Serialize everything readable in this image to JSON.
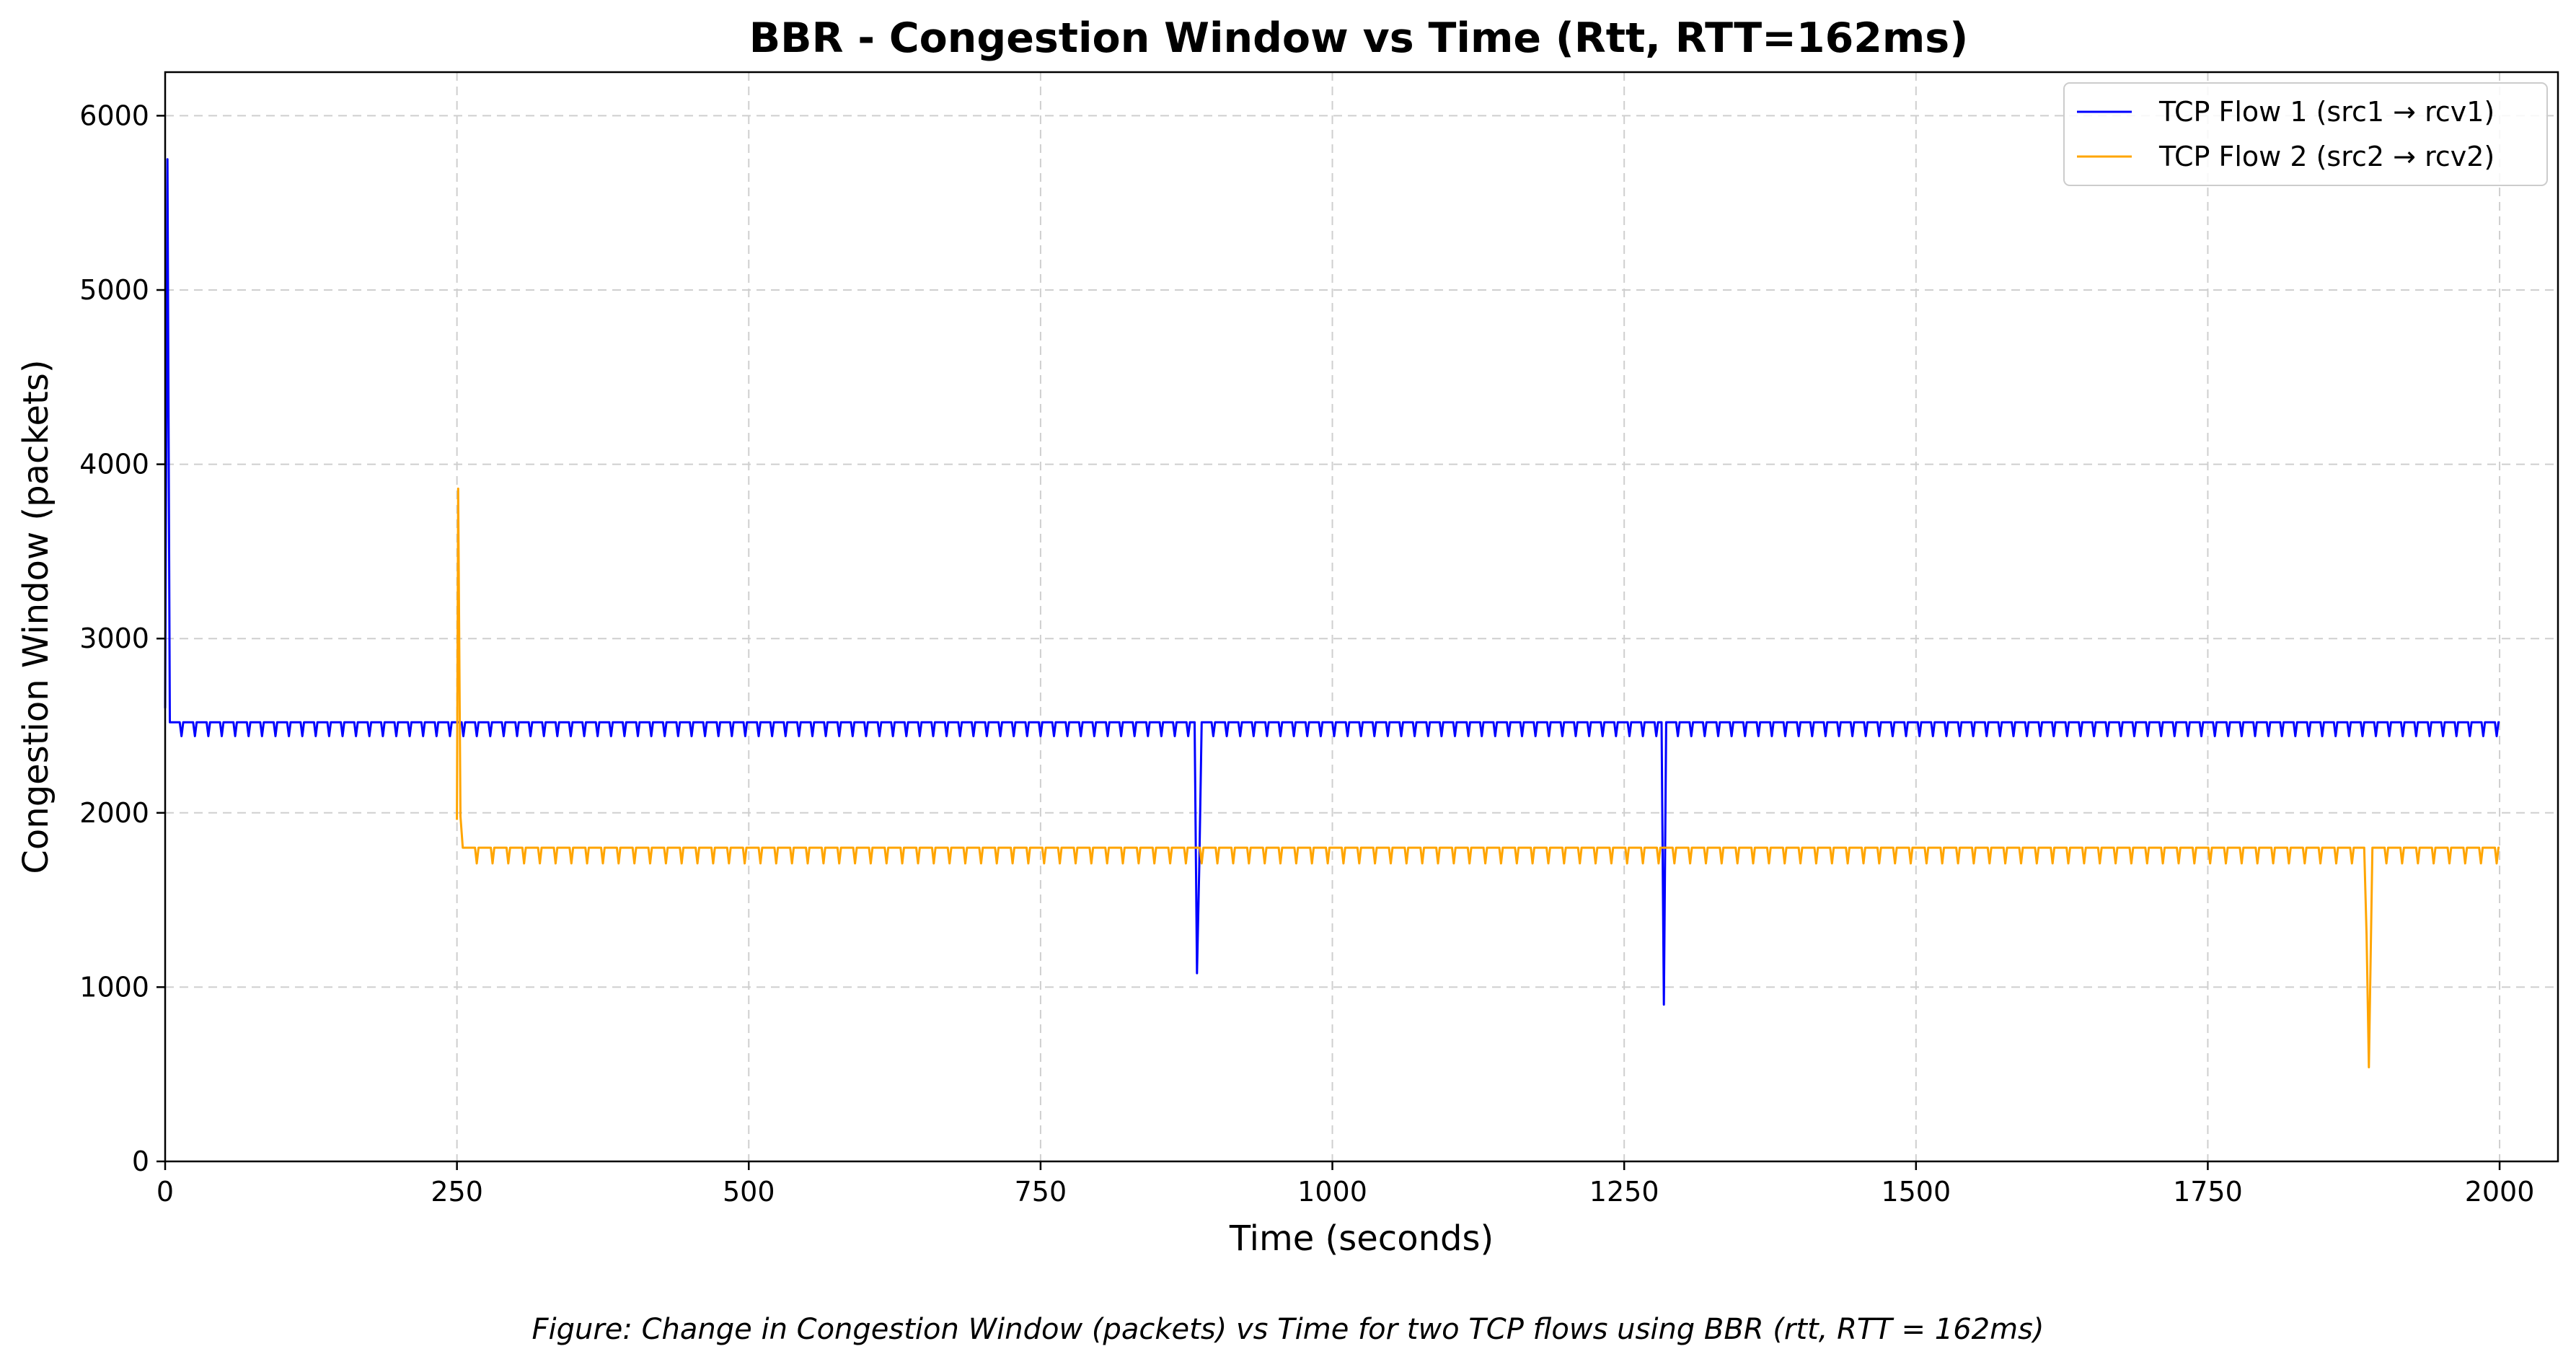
{
  "chart_data": {
    "type": "line",
    "title": "BBR - Congestion Window vs Time (Rtt, RTT=162ms)",
    "xlabel": "Time (seconds)",
    "ylabel": "Congestion Window (packets)",
    "xlim": [
      0,
      2050
    ],
    "ylim": [
      0,
      6250
    ],
    "xticks": [
      0,
      250,
      500,
      750,
      1000,
      1250,
      1500,
      1750,
      2000
    ],
    "yticks": [
      0,
      1000,
      2000,
      3000,
      4000,
      5000,
      6000
    ],
    "grid": true,
    "legend_position": "top-right",
    "caption": "Figure: Change in Congestion Window (packets) vs Time for two TCP flows using BBR (rtt, RTT = 162ms)",
    "series": [
      {
        "name": "TCP Flow 1 (src1 → rcv1)",
        "color": "#0000ff",
        "start": 0,
        "end": 2000,
        "base": 2520,
        "dip": 2440,
        "period": 10,
        "initial_spike": [
          [
            0,
            2600
          ],
          [
            2,
            5750
          ],
          [
            4,
            2520
          ]
        ],
        "events": [
          [
            882,
            2520
          ],
          [
            884,
            1080
          ],
          [
            886,
            1700
          ],
          [
            888,
            2520
          ],
          [
            1282,
            2520
          ],
          [
            1284,
            900
          ],
          [
            1286,
            2520
          ]
        ]
      },
      {
        "name": "TCP Flow 2 (src2 → rcv2)",
        "color": "#ffa500",
        "start": 250,
        "end": 2000,
        "base": 1800,
        "dip": 1710,
        "period": 12,
        "initial_spike": [
          [
            250,
            1960
          ],
          [
            251,
            3860
          ],
          [
            253,
            1980
          ],
          [
            255,
            1800
          ]
        ],
        "events": [
          [
            1884,
            1800
          ],
          [
            1886,
            1300
          ],
          [
            1888,
            540
          ],
          [
            1891,
            1800
          ]
        ]
      }
    ]
  }
}
